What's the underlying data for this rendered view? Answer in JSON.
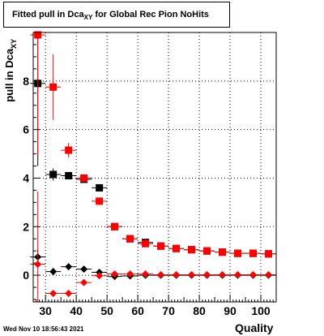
{
  "title": {
    "main": "Fitted pull in Dca",
    "sub": "XY",
    "rest": " for Global Rec Pion NoHits"
  },
  "ylabel": {
    "main": "pull in Dca",
    "sub": "XY"
  },
  "xlabel": "Quality",
  "footer": {
    "timestamp": "Wed Nov 10 18:56:43 2021"
  },
  "colors": {
    "series_a": "#000000",
    "series_b": "#ff0000",
    "grid": "#000000"
  },
  "chart_data": {
    "type": "scatter",
    "xlim": [
      26,
      105
    ],
    "ylim": [
      -1.1,
      10
    ],
    "grid": true,
    "xticks": [
      30,
      40,
      50,
      60,
      70,
      80,
      90,
      100
    ],
    "yticks": [
      0,
      2,
      4,
      6,
      8
    ],
    "x_bin_halfwidth": 2.5,
    "series": [
      {
        "marker": "square",
        "color": "#000000",
        "points": [
          {
            "x": 27.5,
            "y": 7.9,
            "err": 3.4
          },
          {
            "x": 32.5,
            "y": 4.15,
            "err": 0.25
          },
          {
            "x": 37.5,
            "y": 4.1,
            "err": 0.15
          },
          {
            "x": 42.5,
            "y": 3.95,
            "err": 0.1
          },
          {
            "x": 47.5,
            "y": 3.6,
            "err": 0.1
          },
          {
            "x": 52.5,
            "y": 2.0,
            "err": 0.06
          },
          {
            "x": 57.5,
            "y": 1.5,
            "err": 0.05
          },
          {
            "x": 62.5,
            "y": 1.35,
            "err": 0.04
          },
          {
            "x": 67.5,
            "y": 1.2,
            "err": 0.04
          },
          {
            "x": 72.5,
            "y": 1.1,
            "err": 0.04
          },
          {
            "x": 77.5,
            "y": 1.05,
            "err": 0.04
          },
          {
            "x": 82.5,
            "y": 1.0,
            "err": 0.04
          },
          {
            "x": 87.5,
            "y": 0.95,
            "err": 0.04
          },
          {
            "x": 92.5,
            "y": 0.9,
            "err": 0.04
          },
          {
            "x": 97.5,
            "y": 0.9,
            "err": 0.04
          },
          {
            "x": 102.5,
            "y": 0.88,
            "err": 0.04
          }
        ]
      },
      {
        "marker": "square",
        "color": "#ff0000",
        "points": [
          {
            "x": 27.5,
            "y": 9.9,
            "err": 5.0
          },
          {
            "x": 32.5,
            "y": 7.75,
            "err": 1.35
          },
          {
            "x": 37.5,
            "y": 5.15,
            "err": 0.3
          },
          {
            "x": 42.5,
            "y": 4.0,
            "err": 0.12
          },
          {
            "x": 47.5,
            "y": 3.05,
            "err": 0.1
          },
          {
            "x": 52.5,
            "y": 2.0,
            "err": 0.06
          },
          {
            "x": 57.5,
            "y": 1.5,
            "err": 0.05
          },
          {
            "x": 62.5,
            "y": 1.3,
            "err": 0.04
          },
          {
            "x": 67.5,
            "y": 1.2,
            "err": 0.04
          },
          {
            "x": 72.5,
            "y": 1.1,
            "err": 0.04
          },
          {
            "x": 77.5,
            "y": 1.05,
            "err": 0.04
          },
          {
            "x": 82.5,
            "y": 1.0,
            "err": 0.04
          },
          {
            "x": 87.5,
            "y": 0.95,
            "err": 0.04
          },
          {
            "x": 92.5,
            "y": 0.9,
            "err": 0.04
          },
          {
            "x": 97.5,
            "y": 0.9,
            "err": 0.04
          },
          {
            "x": 102.5,
            "y": 0.88,
            "err": 0.04
          }
        ]
      },
      {
        "marker": "diamond",
        "color": "#000000",
        "points": [
          {
            "x": 27.5,
            "y": 0.75,
            "err": 0.3
          },
          {
            "x": 32.5,
            "y": 0.15,
            "err": 0.15
          },
          {
            "x": 37.5,
            "y": 0.35,
            "err": 0.08
          },
          {
            "x": 42.5,
            "y": 0.25,
            "err": 0.05
          },
          {
            "x": 47.5,
            "y": 0.12,
            "err": 0.04
          },
          {
            "x": 52.5,
            "y": -0.05,
            "err": 0.03
          },
          {
            "x": 57.5,
            "y": -0.03,
            "err": 0.03
          },
          {
            "x": 62.5,
            "y": 0.0,
            "err": 0.02
          },
          {
            "x": 67.5,
            "y": 0.0,
            "err": 0.02
          },
          {
            "x": 72.5,
            "y": 0.0,
            "err": 0.02
          },
          {
            "x": 77.5,
            "y": 0.0,
            "err": 0.02
          },
          {
            "x": 82.5,
            "y": 0.0,
            "err": 0.02
          },
          {
            "x": 87.5,
            "y": 0.0,
            "err": 0.02
          },
          {
            "x": 92.5,
            "y": 0.0,
            "err": 0.02
          },
          {
            "x": 97.5,
            "y": 0.0,
            "err": 0.02
          },
          {
            "x": 102.5,
            "y": 0.0,
            "err": 0.02
          }
        ]
      },
      {
        "marker": "diamond",
        "color": "#ff0000",
        "points": [
          {
            "x": 27.5,
            "y": 0.45,
            "err": 3.0
          },
          {
            "x": 32.5,
            "y": -0.75,
            "err": 0.1
          },
          {
            "x": 37.5,
            "y": -0.75,
            "err": 0.15
          },
          {
            "x": 42.5,
            "y": -0.3,
            "err": 0.05
          },
          {
            "x": 47.5,
            "y": -0.02,
            "err": 0.04
          },
          {
            "x": 52.5,
            "y": 0.05,
            "err": 0.03
          },
          {
            "x": 57.5,
            "y": 0.05,
            "err": 0.03
          },
          {
            "x": 62.5,
            "y": 0.05,
            "err": 0.02
          },
          {
            "x": 67.5,
            "y": 0.02,
            "err": 0.02
          },
          {
            "x": 72.5,
            "y": 0.02,
            "err": 0.02
          },
          {
            "x": 77.5,
            "y": 0.02,
            "err": 0.02
          },
          {
            "x": 82.5,
            "y": 0.02,
            "err": 0.02
          },
          {
            "x": 87.5,
            "y": 0.02,
            "err": 0.02
          },
          {
            "x": 92.5,
            "y": 0.02,
            "err": 0.02
          },
          {
            "x": 97.5,
            "y": 0.02,
            "err": 0.02
          },
          {
            "x": 102.5,
            "y": 0.02,
            "err": 0.02
          }
        ]
      }
    ]
  }
}
